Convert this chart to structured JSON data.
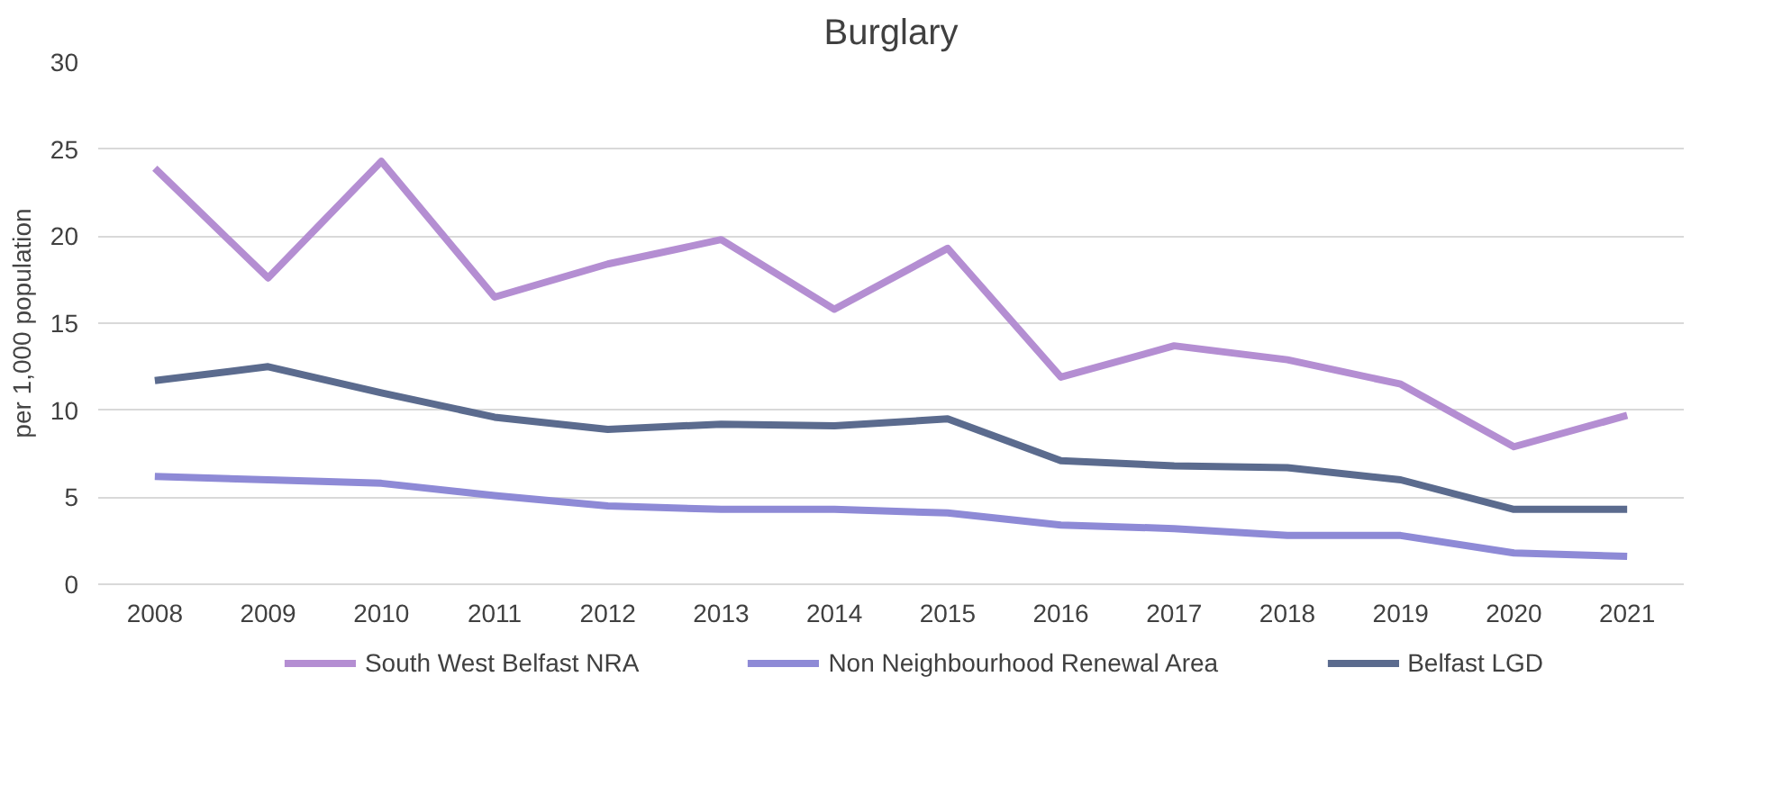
{
  "chart_data": {
    "type": "line",
    "title": "Burglary",
    "ylabel": "per 1,000 population",
    "categories": [
      "2008",
      "2009",
      "2010",
      "2011",
      "2012",
      "2013",
      "2014",
      "2015",
      "2016",
      "2017",
      "2018",
      "2019",
      "2020",
      "2021"
    ],
    "series": [
      {
        "name": "South West Belfast NRA",
        "color": "#b48ed2",
        "values": [
          23.9,
          17.6,
          24.3,
          16.5,
          18.4,
          19.8,
          15.8,
          19.3,
          11.9,
          13.7,
          12.9,
          11.5,
          7.9,
          9.7
        ]
      },
      {
        "name": "Non Neighbourhood Renewal Area",
        "color": "#8e8ad6",
        "values": [
          6.2,
          6.0,
          5.8,
          5.1,
          4.5,
          4.3,
          4.3,
          4.1,
          3.4,
          3.2,
          2.8,
          2.8,
          1.8,
          1.6
        ]
      },
      {
        "name": "Belfast LGD",
        "color": "#5b6b8e",
        "values": [
          11.7,
          12.5,
          11.0,
          9.6,
          8.9,
          9.2,
          9.1,
          9.5,
          7.1,
          6.8,
          6.7,
          6.0,
          4.3,
          4.3
        ]
      }
    ],
    "ylim": [
      0,
      30
    ],
    "yticks": [
      0,
      5,
      10,
      15,
      20,
      25,
      30
    ],
    "grid": "y",
    "legend": "bottom",
    "marker": "none",
    "line_style": "solid"
  }
}
